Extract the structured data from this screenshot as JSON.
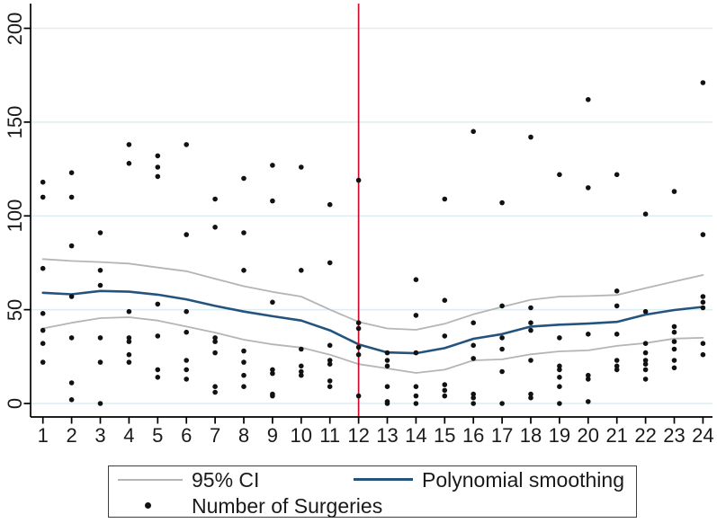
{
  "figure": {
    "legend": {
      "ci_label": "95% CI",
      "smooth_label": "Polynomial smoothing",
      "scatter_label": "Number of Surgeries"
    },
    "colors": {
      "ci": "#b5b5b5",
      "smooth": "#24547e",
      "scatter": "#111111",
      "refline": "#cf0a2c",
      "grid": "#dceef2",
      "axis": "#000000"
    }
  },
  "chart_data": {
    "type": "scatter",
    "title": "",
    "xlabel": "",
    "ylabel": "",
    "grid": true,
    "legend_position": "bottom",
    "xlim": [
      1,
      24
    ],
    "ylim": [
      0,
      200
    ],
    "x_ticks": [
      1,
      2,
      3,
      4,
      5,
      6,
      7,
      8,
      9,
      10,
      11,
      12,
      13,
      14,
      15,
      16,
      17,
      18,
      19,
      20,
      21,
      22,
      23,
      24
    ],
    "y_ticks": [
      0,
      50,
      100,
      150,
      200
    ],
    "vline_x": 12,
    "series": [
      {
        "name": "95% CI (upper)",
        "color_key": "ci",
        "width": 1.8,
        "x": [
          1,
          2,
          3,
          4,
          5,
          6,
          7,
          8,
          9,
          10,
          11,
          12,
          13,
          14,
          15,
          16,
          17,
          18,
          19,
          20,
          21,
          22,
          23,
          24
        ],
        "y": [
          77,
          76,
          75.4,
          74.6,
          72.5,
          70.5,
          66.5,
          62.5,
          59.5,
          57,
          50,
          43.5,
          40,
          39.3,
          42.5,
          47.5,
          51.5,
          55.3,
          57,
          57.3,
          57.8,
          61.5,
          65,
          68.5
        ]
      },
      {
        "name": "Polynomial smoothing",
        "color_key": "smooth",
        "width": 2.6,
        "x": [
          1,
          2,
          3,
          4,
          5,
          6,
          7,
          8,
          9,
          10,
          11,
          12,
          13,
          14,
          15,
          16,
          17,
          18,
          19,
          20,
          21,
          22,
          23,
          24
        ],
        "y": [
          59,
          58.2,
          60,
          59.6,
          58,
          55.5,
          52,
          49,
          46.5,
          44.2,
          39,
          31.5,
          27.2,
          26.8,
          29.5,
          34.5,
          37,
          41,
          42,
          42.6,
          43.5,
          47.4,
          49.8,
          51.5
        ]
      },
      {
        "name": "95% CI (lower)",
        "color_key": "ci",
        "width": 1.8,
        "x": [
          1,
          2,
          3,
          4,
          5,
          6,
          7,
          8,
          9,
          10,
          11,
          12,
          13,
          14,
          15,
          16,
          17,
          18,
          19,
          20,
          21,
          22,
          23,
          24
        ],
        "y": [
          40,
          43,
          45.5,
          46,
          44.2,
          41,
          37.8,
          34,
          31.5,
          29.8,
          26,
          21,
          18.7,
          16.3,
          18,
          23,
          23.5,
          26.2,
          27.8,
          28.3,
          30.7,
          32.2,
          34.6,
          35
        ]
      }
    ],
    "points_name": "Number of Surgeries",
    "points": [
      [
        1,
        118
      ],
      [
        1,
        110
      ],
      [
        1,
        72
      ],
      [
        1,
        48
      ],
      [
        1,
        39
      ],
      [
        1,
        32
      ],
      [
        1,
        22
      ],
      [
        2,
        123
      ],
      [
        2,
        110
      ],
      [
        2,
        84
      ],
      [
        2,
        57
      ],
      [
        2,
        35
      ],
      [
        2,
        11
      ],
      [
        2,
        2
      ],
      [
        3,
        91
      ],
      [
        3,
        71
      ],
      [
        3,
        63
      ],
      [
        3,
        35
      ],
      [
        3,
        22
      ],
      [
        3,
        0
      ],
      [
        4,
        138
      ],
      [
        4,
        128
      ],
      [
        4,
        49
      ],
      [
        4,
        35
      ],
      [
        4,
        33
      ],
      [
        4,
        26
      ],
      [
        4,
        22
      ],
      [
        5,
        132
      ],
      [
        5,
        126
      ],
      [
        5,
        121
      ],
      [
        5,
        53
      ],
      [
        5,
        36
      ],
      [
        5,
        18
      ],
      [
        5,
        14
      ],
      [
        6,
        138
      ],
      [
        6,
        90
      ],
      [
        6,
        49
      ],
      [
        6,
        38
      ],
      [
        6,
        23
      ],
      [
        6,
        18
      ],
      [
        6,
        13
      ],
      [
        7,
        109
      ],
      [
        7,
        94
      ],
      [
        7,
        35
      ],
      [
        7,
        33
      ],
      [
        7,
        27
      ],
      [
        7,
        9
      ],
      [
        7,
        6
      ],
      [
        8,
        120
      ],
      [
        8,
        91
      ],
      [
        8,
        71
      ],
      [
        8,
        28
      ],
      [
        8,
        22
      ],
      [
        8,
        15
      ],
      [
        8,
        9
      ],
      [
        9,
        127
      ],
      [
        9,
        108
      ],
      [
        9,
        54
      ],
      [
        9,
        18
      ],
      [
        9,
        16
      ],
      [
        9,
        5
      ],
      [
        9,
        4
      ],
      [
        10,
        126
      ],
      [
        10,
        71
      ],
      [
        10,
        29
      ],
      [
        10,
        20
      ],
      [
        10,
        17
      ],
      [
        10,
        15
      ],
      [
        11,
        106
      ],
      [
        11,
        75
      ],
      [
        11,
        31
      ],
      [
        11,
        23
      ],
      [
        11,
        21
      ],
      [
        11,
        12
      ],
      [
        11,
        9
      ],
      [
        12,
        119
      ],
      [
        12,
        43
      ],
      [
        12,
        40
      ],
      [
        12,
        30
      ],
      [
        12,
        26
      ],
      [
        12,
        4
      ],
      [
        13,
        27
      ],
      [
        13,
        23
      ],
      [
        13,
        20
      ],
      [
        13,
        9
      ],
      [
        13,
        1
      ],
      [
        13,
        0
      ],
      [
        14,
        66
      ],
      [
        14,
        47
      ],
      [
        14,
        27
      ],
      [
        14,
        9
      ],
      [
        14,
        4
      ],
      [
        14,
        0
      ],
      [
        15,
        109
      ],
      [
        15,
        55
      ],
      [
        15,
        36
      ],
      [
        15,
        10
      ],
      [
        15,
        7
      ],
      [
        15,
        4
      ],
      [
        16,
        145
      ],
      [
        16,
        43
      ],
      [
        16,
        31
      ],
      [
        16,
        24
      ],
      [
        16,
        5
      ],
      [
        16,
        3
      ],
      [
        16,
        0
      ],
      [
        17,
        107
      ],
      [
        17,
        52
      ],
      [
        17,
        35
      ],
      [
        17,
        29
      ],
      [
        17,
        17
      ],
      [
        17,
        0
      ],
      [
        18,
        142
      ],
      [
        18,
        51
      ],
      [
        18,
        43
      ],
      [
        18,
        39
      ],
      [
        18,
        23
      ],
      [
        18,
        5
      ],
      [
        18,
        3
      ],
      [
        19,
        122
      ],
      [
        19,
        35
      ],
      [
        19,
        20
      ],
      [
        19,
        18
      ],
      [
        19,
        14
      ],
      [
        19,
        9
      ],
      [
        19,
        0
      ],
      [
        20,
        162
      ],
      [
        20,
        115
      ],
      [
        20,
        37
      ],
      [
        20,
        15
      ],
      [
        20,
        13
      ],
      [
        20,
        1
      ],
      [
        21,
        122
      ],
      [
        21,
        60
      ],
      [
        21,
        52
      ],
      [
        21,
        37
      ],
      [
        21,
        23
      ],
      [
        21,
        20
      ],
      [
        21,
        18
      ],
      [
        22,
        101
      ],
      [
        22,
        49
      ],
      [
        22,
        32
      ],
      [
        22,
        27
      ],
      [
        22,
        23
      ],
      [
        22,
        21
      ],
      [
        22,
        18
      ],
      [
        22,
        13
      ],
      [
        23,
        113
      ],
      [
        23,
        41
      ],
      [
        23,
        38
      ],
      [
        23,
        33
      ],
      [
        23,
        29
      ],
      [
        23,
        23
      ],
      [
        23,
        19
      ],
      [
        24,
        171
      ],
      [
        24,
        90
      ],
      [
        24,
        57
      ],
      [
        24,
        54
      ],
      [
        24,
        51
      ],
      [
        24,
        32
      ],
      [
        24,
        26
      ]
    ]
  }
}
